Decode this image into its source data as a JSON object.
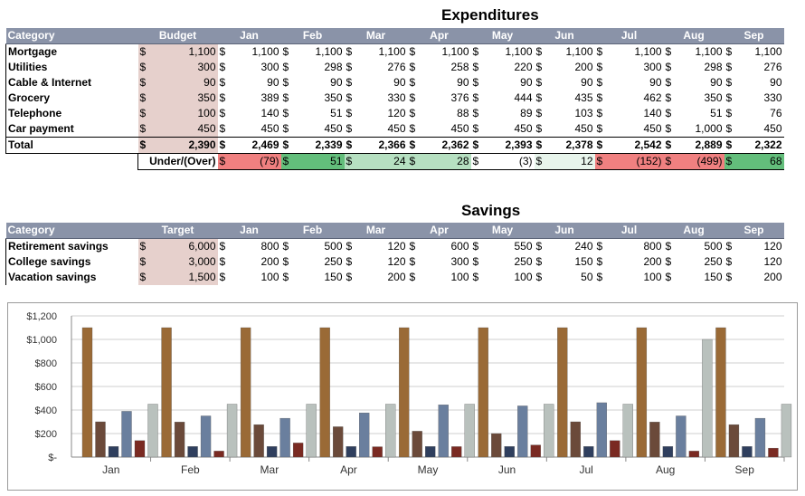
{
  "expenditures": {
    "title": "Expenditures",
    "header": {
      "category": "Category",
      "budget": "Budget",
      "months": [
        "Jan",
        "Feb",
        "Mar",
        "Apr",
        "May",
        "Jun",
        "Jul",
        "Aug",
        "Sep"
      ]
    },
    "currency": "$",
    "rows": [
      {
        "name": "Mortgage",
        "budget": "1,100",
        "values": [
          "1,100",
          "1,100",
          "1,100",
          "1,100",
          "1,100",
          "1,100",
          "1,100",
          "1,100",
          "1,100"
        ]
      },
      {
        "name": "Utilities",
        "budget": "300",
        "values": [
          "300",
          "298",
          "276",
          "258",
          "220",
          "200",
          "300",
          "298",
          "276"
        ]
      },
      {
        "name": "Cable & Internet",
        "budget": "90",
        "values": [
          "90",
          "90",
          "90",
          "90",
          "90",
          "90",
          "90",
          "90",
          "90"
        ]
      },
      {
        "name": "Grocery",
        "budget": "350",
        "values": [
          "389",
          "350",
          "330",
          "376",
          "444",
          "435",
          "462",
          "350",
          "330"
        ]
      },
      {
        "name": "Telephone",
        "budget": "100",
        "values": [
          "140",
          "51",
          "120",
          "88",
          "89",
          "103",
          "140",
          "51",
          "76"
        ]
      },
      {
        "name": "Car payment",
        "budget": "450",
        "values": [
          "450",
          "450",
          "450",
          "450",
          "450",
          "450",
          "450",
          "1,000",
          "450"
        ]
      }
    ],
    "total": {
      "name": "Total",
      "budget": "2,390",
      "values": [
        "2,469",
        "2,339",
        "2,366",
        "2,362",
        "2,393",
        "2,378",
        "2,542",
        "2,889",
        "2,322"
      ]
    },
    "under_over": {
      "label": "Under/(Over)",
      "values": [
        "(79)",
        "51",
        "24",
        "28",
        "(3)",
        "12",
        "(152)",
        "(499)",
        "68"
      ]
    }
  },
  "savings": {
    "title": "Savings",
    "header": {
      "category": "Category",
      "target": "Target",
      "months": [
        "Jan",
        "Feb",
        "Mar",
        "Apr",
        "May",
        "Jun",
        "Jul",
        "Aug",
        "Sep"
      ]
    },
    "rows": [
      {
        "name": "Retirement savings",
        "target": "6,000",
        "values": [
          "800",
          "500",
          "120",
          "600",
          "550",
          "240",
          "800",
          "500",
          "120"
        ]
      },
      {
        "name": "College savings",
        "target": "3,000",
        "values": [
          "200",
          "250",
          "120",
          "300",
          "250",
          "150",
          "200",
          "250",
          "120"
        ]
      },
      {
        "name": "Vacation savings",
        "target": "1,500",
        "values": [
          "100",
          "150",
          "200",
          "100",
          "100",
          "50",
          "100",
          "150",
          "200"
        ]
      }
    ]
  },
  "chart_data": {
    "type": "bar",
    "categories": [
      "Jan",
      "Feb",
      "Mar",
      "Apr",
      "May",
      "Jun",
      "Jul",
      "Aug",
      "Sep"
    ],
    "series": [
      {
        "color": "#9a6a36",
        "values": [
          1100,
          1100,
          1100,
          1100,
          1100,
          1100,
          1100,
          1100,
          1100
        ]
      },
      {
        "color": "#6b4a3a",
        "values": [
          300,
          298,
          276,
          258,
          220,
          200,
          300,
          298,
          276
        ]
      },
      {
        "color": "#2f3f5e",
        "values": [
          90,
          90,
          90,
          90,
          90,
          90,
          90,
          90,
          90
        ]
      },
      {
        "color": "#6a7f9e",
        "values": [
          389,
          350,
          330,
          376,
          444,
          435,
          462,
          350,
          330
        ]
      },
      {
        "color": "#7a2a22",
        "values": [
          140,
          51,
          120,
          88,
          89,
          103,
          140,
          51,
          76
        ]
      },
      {
        "color": "#b9c1bd",
        "values": [
          450,
          450,
          450,
          450,
          450,
          450,
          450,
          1000,
          450
        ]
      }
    ],
    "yticks": [
      "$1,200",
      "$1,000",
      "$800",
      "$600",
      "$400",
      "$200",
      "$-"
    ],
    "ylim": [
      0,
      1200
    ],
    "grid": true
  }
}
